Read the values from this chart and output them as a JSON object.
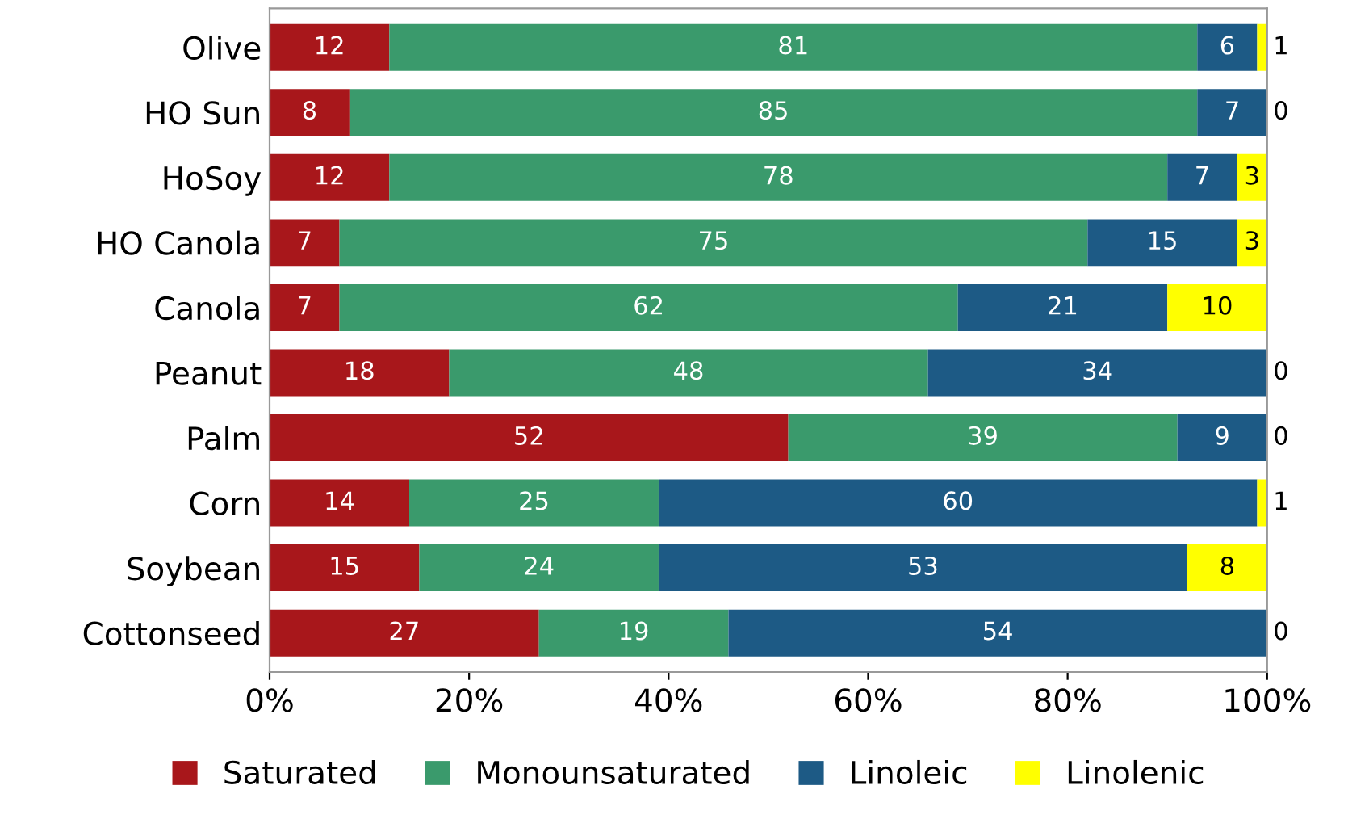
{
  "chart_data": {
    "type": "bar",
    "orientation": "horizontal",
    "stacked": true,
    "data_labels": true,
    "legend": "bottom",
    "grid": false,
    "categories": [
      "Olive",
      "HO Sun",
      "HoSoy",
      "HO Canola",
      "Canola",
      "Peanut",
      "Palm",
      "Corn",
      "Soybean",
      "Cottonseed"
    ],
    "series": [
      {
        "name": "Saturated",
        "color": "#a8171b",
        "values": [
          12,
          8,
          12,
          7,
          7,
          18,
          52,
          14,
          15,
          27
        ]
      },
      {
        "name": "Monounsaturated",
        "color": "#3a9a6c",
        "values": [
          81,
          85,
          78,
          75,
          62,
          48,
          39,
          25,
          24,
          19
        ]
      },
      {
        "name": "Linoleic",
        "color": "#1d5a85",
        "values": [
          6,
          7,
          7,
          15,
          21,
          34,
          9,
          60,
          53,
          54
        ]
      },
      {
        "name": "Linolenic",
        "color": "#ffff00",
        "values": [
          1,
          0,
          3,
          3,
          10,
          0,
          0,
          1,
          8,
          0
        ]
      }
    ],
    "xlim": [
      0,
      100
    ],
    "xticks": [
      {
        "value": 0,
        "label": "0%"
      },
      {
        "value": 20,
        "label": "20%"
      },
      {
        "value": 40,
        "label": "40%"
      },
      {
        "value": 60,
        "label": "60%"
      },
      {
        "value": 80,
        "label": "80%"
      },
      {
        "value": 100,
        "label": "100%"
      }
    ]
  }
}
